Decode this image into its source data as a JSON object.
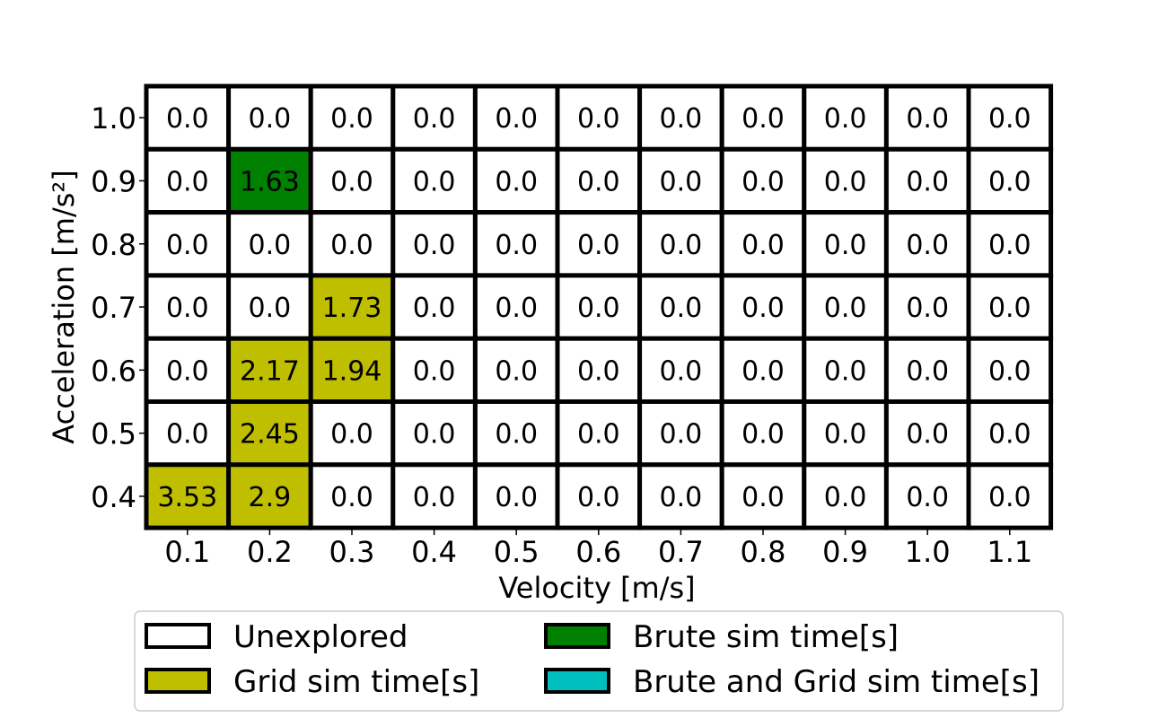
{
  "chart_data": {
    "type": "heatmap",
    "title": "",
    "xlabel": "Velocity [m/s]",
    "ylabel": "Acceleration [m/s²]",
    "x": [
      "0.1",
      "0.2",
      "0.3",
      "0.4",
      "0.5",
      "0.6",
      "0.7",
      "0.8",
      "0.9",
      "1.0",
      "1.1"
    ],
    "y": [
      "1.0",
      "0.9",
      "0.8",
      "0.7",
      "0.6",
      "0.5",
      "0.4"
    ],
    "values": [
      [
        "0.0",
        "0.0",
        "0.0",
        "0.0",
        "0.0",
        "0.0",
        "0.0",
        "0.0",
        "0.0",
        "0.0",
        "0.0"
      ],
      [
        "0.0",
        "1.63",
        "0.0",
        "0.0",
        "0.0",
        "0.0",
        "0.0",
        "0.0",
        "0.0",
        "0.0",
        "0.0"
      ],
      [
        "0.0",
        "0.0",
        "0.0",
        "0.0",
        "0.0",
        "0.0",
        "0.0",
        "0.0",
        "0.0",
        "0.0",
        "0.0"
      ],
      [
        "0.0",
        "0.0",
        "1.73",
        "0.0",
        "0.0",
        "0.0",
        "0.0",
        "0.0",
        "0.0",
        "0.0",
        "0.0"
      ],
      [
        "0.0",
        "2.17",
        "1.94",
        "0.0",
        "0.0",
        "0.0",
        "0.0",
        "0.0",
        "0.0",
        "0.0",
        "0.0"
      ],
      [
        "0.0",
        "2.45",
        "0.0",
        "0.0",
        "0.0",
        "0.0",
        "0.0",
        "0.0",
        "0.0",
        "0.0",
        "0.0"
      ],
      [
        "3.53",
        "2.9",
        "0.0",
        "0.0",
        "0.0",
        "0.0",
        "0.0",
        "0.0",
        "0.0",
        "0.0",
        "0.0"
      ]
    ],
    "categories_matrix": [
      [
        "u",
        "u",
        "u",
        "u",
        "u",
        "u",
        "u",
        "u",
        "u",
        "u",
        "u"
      ],
      [
        "u",
        "b",
        "u",
        "u",
        "u",
        "u",
        "u",
        "u",
        "u",
        "u",
        "u"
      ],
      [
        "u",
        "u",
        "u",
        "u",
        "u",
        "u",
        "u",
        "u",
        "u",
        "u",
        "u"
      ],
      [
        "u",
        "u",
        "g",
        "u",
        "u",
        "u",
        "u",
        "u",
        "u",
        "u",
        "u"
      ],
      [
        "u",
        "g",
        "g",
        "u",
        "u",
        "u",
        "u",
        "u",
        "u",
        "u",
        "u"
      ],
      [
        "u",
        "g",
        "u",
        "u",
        "u",
        "u",
        "u",
        "u",
        "u",
        "u",
        "u"
      ],
      [
        "g",
        "g",
        "u",
        "u",
        "u",
        "u",
        "u",
        "u",
        "u",
        "u",
        "u"
      ]
    ],
    "legend": [
      {
        "key": "u",
        "name": "Unexplored",
        "color": "#ffffff"
      },
      {
        "key": "b",
        "name": "Brute sim time[s]",
        "color": "#008000"
      },
      {
        "key": "g",
        "name": "Grid sim time[s]",
        "color": "#bfbf00"
      },
      {
        "key": "bg",
        "name": "Brute and Grid sim time[s]",
        "color": "#00bfbf"
      }
    ],
    "legend_placement": "bottom-center",
    "grid": true
  }
}
